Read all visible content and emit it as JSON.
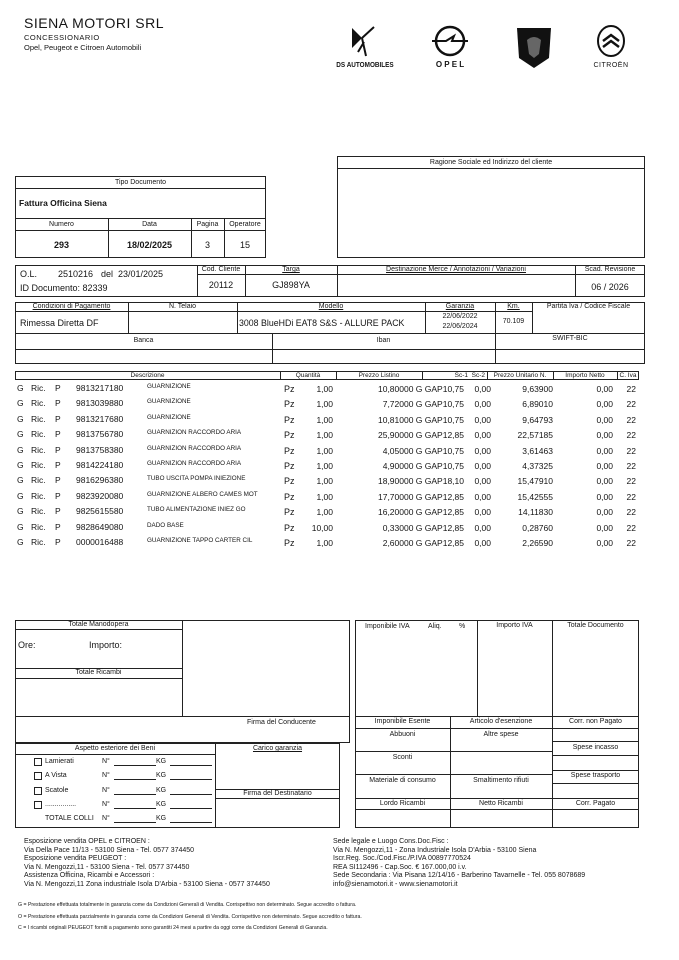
{
  "company": {
    "name": "SIENA MOTORI SRL",
    "subtitle": "CONCESSIONARIO",
    "brands_line": "Opel, Peugeot e Citroen Automobili"
  },
  "logos": [
    {
      "name": "ds-automobiles-logo",
      "text": "DS AUTOMOBILES"
    },
    {
      "name": "opel-logo",
      "text": "O P E L"
    },
    {
      "name": "peugeot-logo",
      "text": "PEUGEOT"
    },
    {
      "name": "citroen-logo",
      "text": "CITROËN"
    }
  ],
  "client": {
    "header": "Ragione Sociale ed Indirizzo del cliente",
    "value": ""
  },
  "document": {
    "tipo_header": "Tipo Documento",
    "tipo_value": "Fattura Officina Siena",
    "numero_label": "Numero",
    "numero": "293",
    "data_label": "Data",
    "data": "18/02/2025",
    "pagina_label": "Pagina",
    "pagina": "3",
    "operatore_label": "Operatore",
    "operatore": "15"
  },
  "order": {
    "ol_label": "O.L.",
    "ol_number": "2510216",
    "del_label": "del",
    "ol_date": "23/01/2025",
    "id_documento": "ID Documento: 82339",
    "cod_cliente_label": "Cod. Cliente",
    "cod_cliente": "20112",
    "targa_label": "Targa",
    "targa": "GJ898YA",
    "destinazione_label": "Destinazione Merce / Annotazioni / Variazioni",
    "scad_revisione_label": "Scad. Revisione",
    "scad_revisione": "06 / 2026"
  },
  "vehicle": {
    "pagamento_label": "Condizioni di Pagamento",
    "pagamento": "Rimessa Diretta DF",
    "telaio_label": "N. Telaio",
    "modello_label": "Modello",
    "modello": "3008 BlueHDi EAT8 S&S - ALLURE PACK",
    "garanzia_label": "Garanzia",
    "garanzia_from": "22/06/2022",
    "garanzia_to": "22/06/2024",
    "km_label": "Km.",
    "km": "70.109",
    "piva_label": "Partita Iva / Codice Fiscale"
  },
  "bank": {
    "banca_label": "Banca",
    "iban_label": "Iban",
    "swift_label": "SWIFT-BIC"
  },
  "items_header": {
    "descrizione": "Descrizione",
    "quantita": "Quantità",
    "prezzo_listino": "Prezzo Listino",
    "sconti": "Sc-1  Sc-2",
    "prezzo_unitario": "Prezzo Unitario N.",
    "importo_netto": "Importo Netto",
    "iva": "C. Iva"
  },
  "items": [
    {
      "g": "G",
      "type": "Ric.",
      "p": "P",
      "code": "9813217180",
      "desc": "GUARNIZIONE",
      "um": "Pz",
      "qty": "1,00",
      "listino": "10,80000 G GAP10,75",
      "sc2": "0,00",
      "unit": "9,63900",
      "netto": "0,00",
      "iva": "22"
    },
    {
      "g": "G",
      "type": "Ric.",
      "p": "P",
      "code": "9813039880",
      "desc": "GUARNIZIONE",
      "um": "Pz",
      "qty": "1,00",
      "listino": "7,72000 G GAP10,75",
      "sc2": "0,00",
      "unit": "6,89010",
      "netto": "0,00",
      "iva": "22"
    },
    {
      "g": "G",
      "type": "Ric.",
      "p": "P",
      "code": "9813217680",
      "desc": "GUARNIZIONE",
      "um": "Pz",
      "qty": "1,00",
      "listino": "10,81000 G GAP10,75",
      "sc2": "0,00",
      "unit": "9,64793",
      "netto": "0,00",
      "iva": "22"
    },
    {
      "g": "G",
      "type": "Ric.",
      "p": "P",
      "code": "9813756780",
      "desc": "GUARNIZION RACCORDO ARIA",
      "um": "Pz",
      "qty": "1,00",
      "listino": "25,90000 G GAP12,85",
      "sc2": "0,00",
      "unit": "22,57185",
      "netto": "0,00",
      "iva": "22"
    },
    {
      "g": "G",
      "type": "Ric.",
      "p": "P",
      "code": "9813758380",
      "desc": "GUARNIZION RACCORDO ARIA",
      "um": "Pz",
      "qty": "1,00",
      "listino": "4,05000 G GAP10,75",
      "sc2": "0,00",
      "unit": "3,61463",
      "netto": "0,00",
      "iva": "22"
    },
    {
      "g": "G",
      "type": "Ric.",
      "p": "P",
      "code": "9814224180",
      "desc": "GUARNIZION RACCORDO ARIA",
      "um": "Pz",
      "qty": "1,00",
      "listino": "4,90000 G GAP10,75",
      "sc2": "0,00",
      "unit": "4,37325",
      "netto": "0,00",
      "iva": "22"
    },
    {
      "g": "G",
      "type": "Ric.",
      "p": "P",
      "code": "9816296380",
      "desc": "TUBO USCITA POMPA INIEZIONE",
      "um": "Pz",
      "qty": "1,00",
      "listino": "18,90000 G GAP18,10",
      "sc2": "0,00",
      "unit": "15,47910",
      "netto": "0,00",
      "iva": "22"
    },
    {
      "g": "G",
      "type": "Ric.",
      "p": "P",
      "code": "9823920080",
      "desc": "GUARNIZIONE ALBERO CAMES MOT",
      "um": "Pz",
      "qty": "1,00",
      "listino": "17,70000 G GAP12,85",
      "sc2": "0,00",
      "unit": "15,42555",
      "netto": "0,00",
      "iva": "22"
    },
    {
      "g": "G",
      "type": "Ric.",
      "p": "P",
      "code": "9825615580",
      "desc": "TUBO ALIMENTAZIONE INIEZ GO",
      "um": "Pz",
      "qty": "1,00",
      "listino": "16,20000 G GAP12,85",
      "sc2": "0,00",
      "unit": "14,11830",
      "netto": "0,00",
      "iva": "22"
    },
    {
      "g": "G",
      "type": "Ric.",
      "p": "P",
      "code": "9828649080",
      "desc": "DADO BASE",
      "um": "Pz",
      "qty": "10,00",
      "listino": "0,33000 G GAP12,85",
      "sc2": "0,00",
      "unit": "0,28760",
      "netto": "0,00",
      "iva": "22"
    },
    {
      "g": "G",
      "type": "Ric.",
      "p": "P",
      "code": "0000016488",
      "desc": "GUARNIZIONE TAPPO CARTER CIL",
      "um": "Pz",
      "qty": "1,00",
      "listino": "2,60000 G GAP12,85",
      "sc2": "0,00",
      "unit": "2,26590",
      "netto": "0,00",
      "iva": "22"
    }
  ],
  "totals": {
    "manodopera_label": "Totale Manodopera",
    "ore_label": "Ore:",
    "importo_label": "Importo:",
    "ricambi_label": "Totale Ricambi",
    "imponibile_iva_label": "Imponibile IVA",
    "aliq_label": "Aliq.",
    "perc_label": "%",
    "importo_iva_label": "Importo IVA",
    "totale_documento_label": "Totale Documento",
    "firma_conducente_label": "Firma del Conducente",
    "imponibile_esente_label": "Imponibile Esente",
    "articolo_esenzione_label": "Articolo d'esenzione",
    "corr_non_pagato_label": "Corr. non Pagato",
    "abbuoni_label": "Abbuoni",
    "altre_spese_label": "Altre spese",
    "spese_incasso_label": "Spese incasso",
    "sconti_label": "Sconti",
    "spese_trasporto_label": "Spese trasporto",
    "materiale_label": "Materiale di consumo",
    "smaltimento_label": "Smaltimento rifiuti",
    "lordo_ricambi_label": "Lordo Ricambi",
    "netto_ricambi_label": "Netto Ricambi",
    "corr_pagato_label": "Corr. Pagato"
  },
  "goods": {
    "header": "Aspetto esteriore dei Beni",
    "carico_label": "Carico garanzia",
    "firma_destinatario_label": "Firma del Destinatario",
    "n_label": "N°",
    "kg_label": "KG",
    "rows": [
      "Lamierati",
      "A Vista",
      "Scatole",
      "................"
    ],
    "totale_colli_label": "TOTALE COLLI"
  },
  "footer": {
    "left": [
      "Esposizione vendita OPEL e CITROEN :",
      "Via Della Pace 11/13 - 53100 Siena - Tel. 0577 374450",
      "Esposizione vendita PEUGEOT :",
      "Via N. Mengozzi,11 - 53100 Siena -  Tel. 0577 374450",
      "Assistenza Officina, Ricambi e Accessori :",
      "Via N. Mengozzi,11 Zona industriale Isola D'Arbia - 53100 Siena - 0577 374450"
    ],
    "right": [
      "Sede legale e Luogo Cons.Doc.Fisc :",
      "Via N. Mengozzi,11 - Zona Industriale Isola D'Arbia - 53100 Siena",
      "Iscr.Reg. Soc./Cod.Fisc./P.IVA 00897770524",
      "REA SI112496 - Cap.Soc. € 167.000,00 i.v.",
      "Sede Secondaria : Via Pisana 12/14/16 - Barberino Tavarnelle - Tel. 055 8078689",
      "info@sienamotori.it  - www.sienamotori.it"
    ],
    "notes": [
      "G = Prestazione effettuata totalmente in garanzia come da Condizioni Generali di Vendita. Corrispettivo non determinato. Segue accredito o fattura.",
      "O = Prestazione effettuata parzialmente in garanzia come da Condizioni Generali di Vendita. Corrispettivo non determinato. Segue accredito o fattura.",
      "C = I ricambi originali PEUGEOT forniti a pagamento sono garantiti 24 mesi a partire da oggi come da Condizioni Generali di Garanzia."
    ]
  }
}
